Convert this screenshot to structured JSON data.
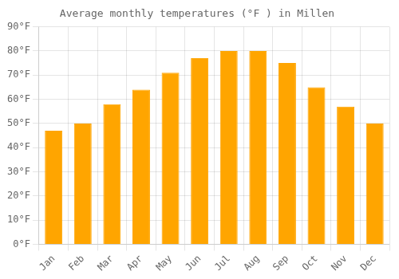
{
  "chart_data": {
    "type": "bar",
    "title": "Average monthly temperatures (°F ) in Millen",
    "categories": [
      "Jan",
      "Feb",
      "Mar",
      "Apr",
      "May",
      "Jun",
      "Jul",
      "Aug",
      "Sep",
      "Oct",
      "Nov",
      "Dec"
    ],
    "values": [
      47,
      50,
      58,
      64,
      71,
      77,
      80,
      80,
      75,
      65,
      57,
      50
    ],
    "color": "#FFA500",
    "ylim": [
      0,
      90
    ],
    "yticks": [
      {
        "value": 0,
        "label": "0°F"
      },
      {
        "value": 10,
        "label": "10°F"
      },
      {
        "value": 20,
        "label": "20°F"
      },
      {
        "value": 30,
        "label": "30°F"
      },
      {
        "value": 40,
        "label": "40°F"
      },
      {
        "value": 50,
        "label": "50°F"
      },
      {
        "value": 60,
        "label": "60°F"
      },
      {
        "value": 70,
        "label": "70°F"
      },
      {
        "value": 80,
        "label": "80°F"
      },
      {
        "value": 90,
        "label": "90°F"
      }
    ],
    "grid": true
  }
}
